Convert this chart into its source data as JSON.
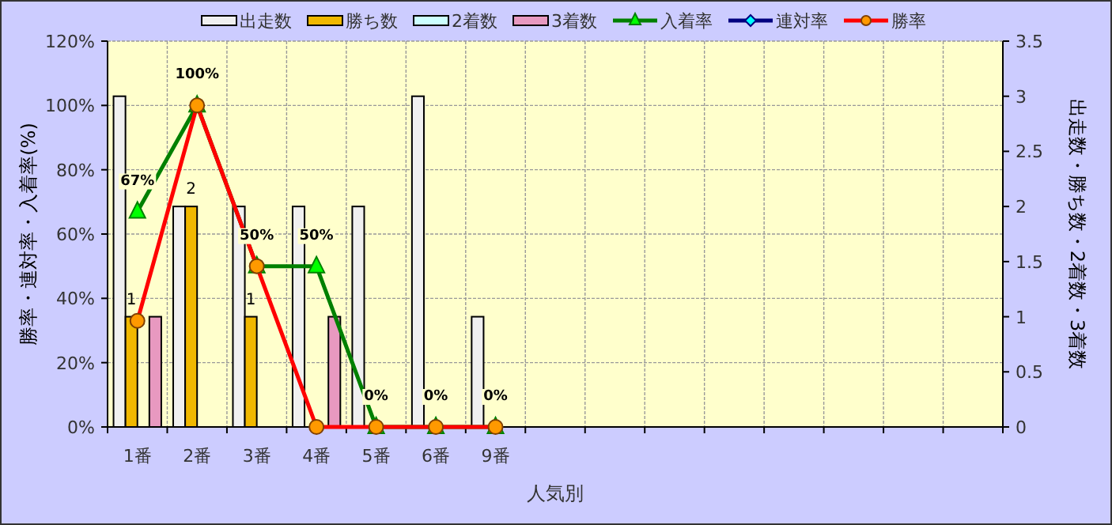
{
  "chart_data": {
    "type": "bar",
    "xlabel": "人気別",
    "ylabel": "勝率・連対率・入着率(%)",
    "y2label": "出走数・勝ち数・2着数・3着数",
    "categories": [
      "1番",
      "2番",
      "3番",
      "4番",
      "5番",
      "6番",
      "9番",
      null,
      null,
      null,
      null,
      null,
      null,
      null,
      null
    ],
    "ylim": [
      0,
      120
    ],
    "yticks": [
      {
        "value": 0,
        "label": "0%"
      },
      {
        "value": 20,
        "label": "20%"
      },
      {
        "value": 40,
        "label": "40%"
      },
      {
        "value": 60,
        "label": "60%"
      },
      {
        "value": 80,
        "label": "80%"
      },
      {
        "value": 100,
        "label": "100%"
      },
      {
        "value": 120,
        "label": "120%"
      }
    ],
    "y2lim": [
      0,
      3.5
    ],
    "y2ticks": [
      0,
      0.5,
      1,
      1.5,
      2,
      2.5,
      3,
      3.5
    ],
    "grid": true,
    "legend": "top",
    "series": [
      {
        "name": "出走数",
        "axis": "y2",
        "color": "#f0f0f0",
        "values": [
          3,
          2,
          2,
          2,
          2,
          3,
          1,
          null,
          null,
          null,
          null,
          null,
          null,
          null,
          null
        ]
      },
      {
        "name": "勝ち数",
        "axis": "y2",
        "color": "#f0b800",
        "values": [
          1,
          2,
          1,
          0,
          0,
          0,
          0,
          null,
          null,
          null,
          null,
          null,
          null,
          null,
          null
        ],
        "value_labels": [
          "1",
          "2",
          "1",
          null,
          null,
          null,
          null,
          null,
          null,
          null,
          null,
          null,
          null,
          null,
          null
        ]
      },
      {
        "name": "2着数",
        "axis": "y2",
        "color": "#ccffff",
        "values": [
          0,
          0,
          0,
          0,
          0,
          0,
          0,
          null,
          null,
          null,
          null,
          null,
          null,
          null,
          null
        ]
      },
      {
        "name": "3着数",
        "axis": "y2",
        "color": "#e899c0",
        "values": [
          1,
          0,
          0,
          1,
          0,
          0,
          0,
          null,
          null,
          null,
          null,
          null,
          null,
          null,
          null
        ]
      },
      {
        "name": "入着率",
        "type": "line",
        "marker": "triangle",
        "color": "#008000",
        "values": [
          67,
          100,
          50,
          50,
          0,
          0,
          0,
          null,
          null,
          null,
          null,
          null,
          null,
          null,
          null
        ],
        "value_labels": [
          "67%",
          "100%",
          "50%",
          "50%",
          "0%",
          "0%",
          "0%",
          null,
          null,
          null,
          null,
          null,
          null,
          null,
          null
        ]
      },
      {
        "name": "連対率",
        "type": "line",
        "marker": "diamond",
        "color": "#000080",
        "values": [
          null,
          null,
          null,
          null,
          null,
          null,
          null,
          null,
          null,
          null,
          null,
          null,
          null,
          null,
          null
        ]
      },
      {
        "name": "勝率",
        "type": "line",
        "marker": "circle",
        "color": "#ff0000",
        "values": [
          33,
          100,
          50,
          0,
          0,
          0,
          0,
          null,
          null,
          null,
          null,
          null,
          null,
          null,
          null
        ]
      }
    ]
  }
}
